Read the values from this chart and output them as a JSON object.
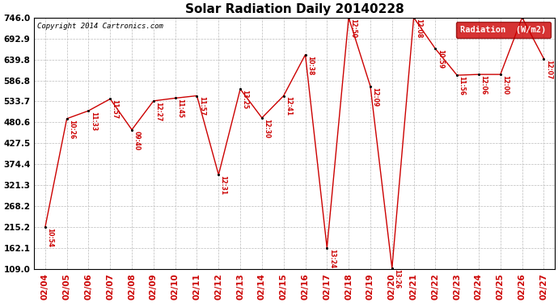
{
  "title": "Solar Radiation Daily 20140228",
  "copyright": "Copyright 2014 Cartronics.com",
  "legend_label": "Radiation  (W/m2)",
  "dates": [
    "02/04",
    "02/05",
    "02/06",
    "02/07",
    "02/08",
    "02/09",
    "02/10",
    "02/11",
    "02/12",
    "02/13",
    "02/14",
    "02/15",
    "02/16",
    "02/17",
    "02/18",
    "02/19",
    "02/20",
    "02/21",
    "02/22",
    "02/23",
    "02/24",
    "02/25",
    "02/26",
    "02/27"
  ],
  "values": [
    215,
    490,
    510,
    540,
    462,
    535,
    542,
    548,
    348,
    565,
    492,
    548,
    652,
    163,
    746,
    572,
    112,
    746,
    667,
    600,
    602,
    602,
    746,
    642
  ],
  "time_labels": [
    "10:54",
    "10:26",
    "11:33",
    "11:57",
    "09:40",
    "12:27",
    "11:45",
    "11:57",
    "12:31",
    "13:25",
    "12:30",
    "12:41",
    "10:38",
    "13:24",
    "12:50",
    "12:09",
    "13:26",
    "12:08",
    "10:59",
    "11:56",
    "12:06",
    "12:00",
    "",
    "12:07"
  ],
  "ylim": [
    109.0,
    746.0
  ],
  "yticks": [
    109.0,
    162.1,
    215.2,
    268.2,
    321.3,
    374.4,
    427.5,
    480.6,
    533.7,
    586.8,
    639.8,
    692.9,
    746.0
  ],
  "line_color": "#cc0000",
  "marker_color": "#000000",
  "bg_color": "#ffffff",
  "grid_color": "#bbbbbb",
  "title_fontsize": 11,
  "tick_fontsize": 7.5,
  "figwidth": 6.9,
  "figheight": 3.75,
  "dpi": 100
}
